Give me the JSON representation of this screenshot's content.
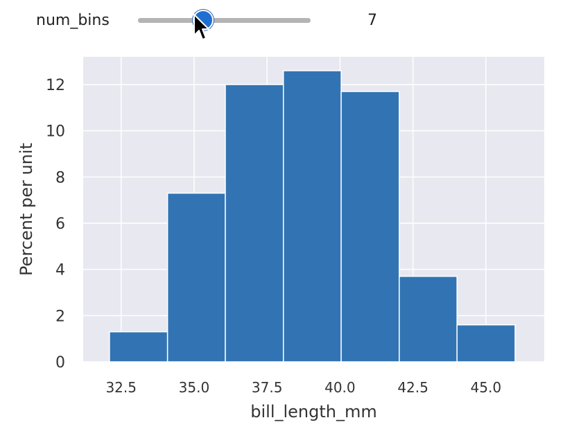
{
  "slider": {
    "label": "num_bins",
    "value": "7",
    "min": 1,
    "max": 20,
    "position": 7,
    "track_color": "#b4b4b4",
    "thumb_color": "#1f6fd1"
  },
  "chart_data": {
    "type": "bar",
    "style": "histogram",
    "bin_edges": [
      32.1,
      34.09,
      36.07,
      38.06,
      40.04,
      42.03,
      44.01,
      46.0
    ],
    "values": [
      1.3,
      7.3,
      12.0,
      12.6,
      11.7,
      3.7,
      1.6
    ],
    "title": "",
    "xlabel": "bill_length_mm",
    "ylabel": "Percent per unit",
    "xlim": [
      31.2,
      47.0
    ],
    "ylim": [
      0,
      13.2
    ],
    "xticks": [
      "32.5",
      "35.0",
      "37.5",
      "40.0",
      "42.5",
      "45.0"
    ],
    "yticks": [
      "0",
      "2",
      "4",
      "6",
      "8",
      "10",
      "12"
    ],
    "grid": true,
    "bar_color": "#3274b3",
    "background_color": "#e8e8f0"
  }
}
